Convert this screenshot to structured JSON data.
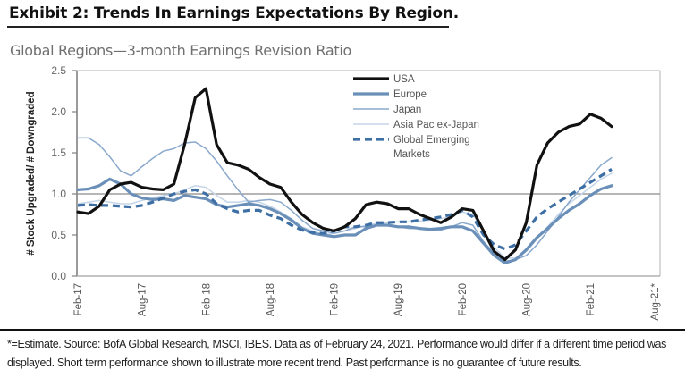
{
  "header": {
    "exhibit_title": "Exhibit 2: Trends In Earnings Expectations By Region.",
    "subtitle": "Global Regions—3-month Earnings Revision Ratio"
  },
  "footnote": "*=Estimate. Source: BofA Global Research, MSCI, IBES. Data as of February 24, 2021. Performance would differ if a different time period was displayed. Short term performance shown to illustrate more recent trend. Past performance is no guarantee of future results.",
  "chart_data": {
    "type": "line",
    "title": "Global Regions—3-month Earnings Revision Ratio",
    "xlabel": "",
    "ylabel": "# Stock Upgraded/ # Downgraded",
    "ylim": [
      0,
      2.5
    ],
    "yticks": [
      0.0,
      0.5,
      1.0,
      1.5,
      2.0,
      2.5
    ],
    "ytick_labels": [
      "0.0",
      "0.5",
      "1.0",
      "1.5",
      "2.0",
      "2.5"
    ],
    "reference_line": 1.0,
    "xtick_labels": [
      "Feb-17",
      "Aug-17",
      "Feb-18",
      "Aug-18",
      "Feb-19",
      "Aug-19",
      "Feb-20",
      "Aug-20",
      "Feb-21",
      "Aug-21*"
    ],
    "x_start": "Feb-17",
    "x_end": "Aug-21",
    "x_unit": "month",
    "legend_position": "top-center",
    "grid": false,
    "series": [
      {
        "name": "USA",
        "color": "#111111",
        "style": "solid-thick",
        "values": [
          0.78,
          0.76,
          0.85,
          1.05,
          1.12,
          1.14,
          1.08,
          1.06,
          1.05,
          1.12,
          1.6,
          2.17,
          2.28,
          1.6,
          1.38,
          1.35,
          1.3,
          1.2,
          1.12,
          1.08,
          0.9,
          0.75,
          0.65,
          0.58,
          0.55,
          0.6,
          0.7,
          0.87,
          0.9,
          0.88,
          0.82,
          0.82,
          0.75,
          0.7,
          0.65,
          0.72,
          0.82,
          0.8,
          0.55,
          0.3,
          0.2,
          0.32,
          0.65,
          1.35,
          1.62,
          1.75,
          1.82,
          1.85,
          1.97,
          1.92,
          1.82
        ]
      },
      {
        "name": "Europe",
        "color": "#6a8fb8",
        "style": "solid-thick",
        "values": [
          1.05,
          1.06,
          1.1,
          1.18,
          1.12,
          1.0,
          0.95,
          0.93,
          0.94,
          0.92,
          0.98,
          0.96,
          0.94,
          0.87,
          0.84,
          0.86,
          0.88,
          0.86,
          0.82,
          0.76,
          0.68,
          0.58,
          0.52,
          0.5,
          0.48,
          0.5,
          0.5,
          0.58,
          0.62,
          0.62,
          0.6,
          0.6,
          0.58,
          0.57,
          0.58,
          0.6,
          0.6,
          0.55,
          0.4,
          0.25,
          0.16,
          0.2,
          0.32,
          0.47,
          0.58,
          0.7,
          0.8,
          0.88,
          0.98,
          1.06,
          1.1
        ]
      },
      {
        "name": "Japan",
        "color": "#8aa8cc",
        "style": "solid-thin",
        "values": [
          1.68,
          1.68,
          1.6,
          1.45,
          1.28,
          1.22,
          1.33,
          1.43,
          1.52,
          1.55,
          1.62,
          1.63,
          1.55,
          1.4,
          1.22,
          1.05,
          0.9,
          0.92,
          0.93,
          0.9,
          0.8,
          0.68,
          0.58,
          0.55,
          0.52,
          0.55,
          0.6,
          0.6,
          0.62,
          0.62,
          0.6,
          0.58,
          0.58,
          0.56,
          0.56,
          0.6,
          0.65,
          0.62,
          0.42,
          0.28,
          0.18,
          0.2,
          0.25,
          0.38,
          0.55,
          0.72,
          0.9,
          1.05,
          1.2,
          1.35,
          1.44
        ]
      },
      {
        "name": "Asia Pac ex-Japan",
        "color": "#c5d5e8",
        "style": "solid-thin",
        "values": [
          0.88,
          0.9,
          0.92,
          0.9,
          0.88,
          0.88,
          0.92,
          0.95,
          0.98,
          1.0,
          1.05,
          1.1,
          1.08,
          0.98,
          0.9,
          0.9,
          0.92,
          0.9,
          0.85,
          0.78,
          0.7,
          0.6,
          0.55,
          0.5,
          0.52,
          0.55,
          0.58,
          0.62,
          0.64,
          0.65,
          0.66,
          0.66,
          0.67,
          0.68,
          0.7,
          0.72,
          0.78,
          0.75,
          0.55,
          0.35,
          0.22,
          0.22,
          0.3,
          0.45,
          0.6,
          0.75,
          0.88,
          0.98,
          1.08,
          1.18,
          1.25
        ]
      },
      {
        "name": "Global Emerging Markets",
        "color": "#3d6fa5",
        "style": "dashed-thick",
        "values": [
          0.86,
          0.87,
          0.86,
          0.86,
          0.85,
          0.84,
          0.86,
          0.9,
          0.95,
          1.0,
          1.03,
          1.05,
          1.0,
          0.88,
          0.82,
          0.78,
          0.8,
          0.8,
          0.74,
          0.7,
          0.62,
          0.56,
          0.53,
          0.52,
          0.55,
          0.6,
          0.6,
          0.62,
          0.65,
          0.65,
          0.66,
          0.66,
          0.68,
          0.7,
          0.72,
          0.75,
          0.8,
          0.72,
          0.5,
          0.38,
          0.33,
          0.38,
          0.55,
          0.72,
          0.82,
          0.9,
          0.98,
          1.06,
          1.14,
          1.22,
          1.3
        ]
      }
    ]
  }
}
